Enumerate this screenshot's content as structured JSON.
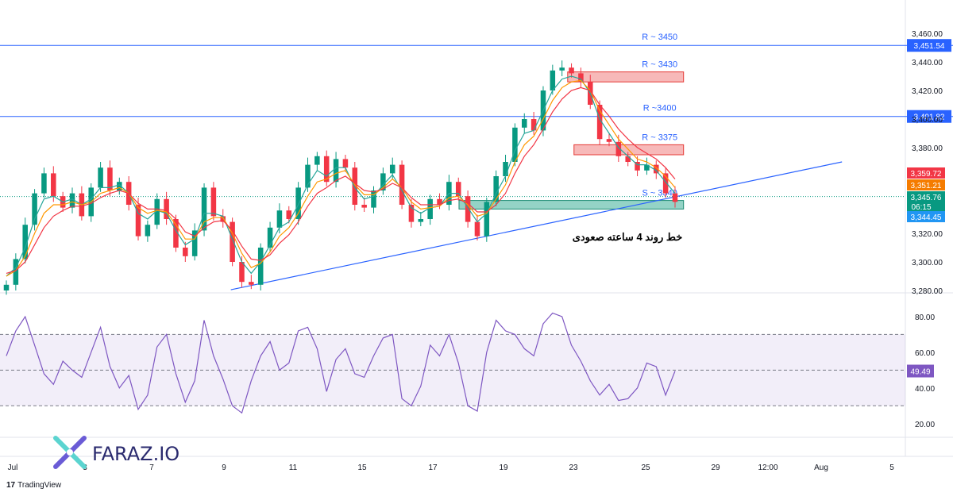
{
  "watermark": {
    "brand": "FARAZ.IO"
  },
  "footer": {
    "platform": "TradingView",
    "platform_mark": "17"
  },
  "chart_data": [
    {
      "type": "line",
      "subtype": "candlestick-price",
      "title": "",
      "xlabel": "",
      "ylabel": "",
      "ylim": [
        3280,
        3460
      ],
      "grid": false,
      "x_ticks": [
        "Jul",
        "3",
        "7",
        "9",
        "11",
        "15",
        "17",
        "19",
        "23",
        "25",
        "29",
        "12:00",
        "Aug",
        "5"
      ],
      "y_ticks": [
        "3,460.00",
        "3,440.00",
        "3,420.00",
        "3,400.00",
        "3,380.00",
        "3,340.00",
        "3,320.00",
        "3,300.00",
        "3,280.00"
      ],
      "series": [
        {
          "values": [
            3284,
            3302,
            3326,
            3348,
            3362,
            3346,
            3338,
            3348,
            3332,
            3352,
            3366,
            3350,
            3356,
            3340,
            3318,
            3326,
            3344,
            3330,
            3310,
            3304,
            3322,
            3352,
            3332,
            3328,
            3300,
            3286,
            3284,
            3310,
            3324,
            3336,
            3330,
            3352,
            3368,
            3374,
            3356,
            3372,
            3366,
            3340,
            3338,
            3350,
            3362,
            3368,
            3340,
            3328,
            3330,
            3344,
            3340,
            3356,
            3346,
            3328,
            3318,
            3342,
            3360,
            3370,
            3394,
            3400,
            3392,
            3420,
            3434,
            3436,
            3432,
            3426,
            3410,
            3386,
            3384,
            3374,
            3370,
            3364,
            3368,
            3362,
            3348,
            3342
          ]
        },
        {
          "name": "ema-fast",
          "values": [
            3290,
            3296,
            3310,
            3330,
            3344,
            3346,
            3342,
            3344,
            3340,
            3344,
            3352,
            3352,
            3354,
            3348,
            3334,
            3330,
            3336,
            3334,
            3322,
            3312,
            3316,
            3334,
            3334,
            3332,
            3316,
            3300,
            3292,
            3300,
            3312,
            3324,
            3328,
            3340,
            3354,
            3364,
            3360,
            3366,
            3366,
            3352,
            3344,
            3346,
            3354,
            3361,
            3350,
            3338,
            3334,
            3338,
            3339,
            3348,
            3348,
            3338,
            3328,
            3334,
            3348,
            3360,
            3378,
            3390,
            3392,
            3406,
            3420,
            3428,
            3430,
            3428,
            3418,
            3400,
            3390,
            3380,
            3374,
            3368,
            3368,
            3364,
            3356,
            3348
          ]
        },
        {
          "name": "ema-mid",
          "values": [
            3290,
            3294,
            3304,
            3320,
            3334,
            3340,
            3340,
            3342,
            3340,
            3342,
            3348,
            3350,
            3352,
            3348,
            3338,
            3334,
            3336,
            3335,
            3326,
            3316,
            3316,
            3328,
            3331,
            3331,
            3320,
            3306,
            3296,
            3299,
            3307,
            3318,
            3324,
            3334,
            3346,
            3356,
            3358,
            3362,
            3364,
            3354,
            3347,
            3347,
            3352,
            3358,
            3352,
            3342,
            3337,
            3338,
            3339,
            3345,
            3346,
            3340,
            3332,
            3334,
            3344,
            3354,
            3370,
            3382,
            3388,
            3400,
            3413,
            3422,
            3426,
            3427,
            3420,
            3406,
            3396,
            3386,
            3379,
            3372,
            3370,
            3366,
            3360,
            3352
          ]
        },
        {
          "name": "ema-slow",
          "values": [
            3292,
            3294,
            3300,
            3312,
            3324,
            3332,
            3336,
            3339,
            3339,
            3341,
            3345,
            3348,
            3350,
            3348,
            3341,
            3337,
            3337,
            3336,
            3330,
            3321,
            3318,
            3324,
            3328,
            3329,
            3322,
            3311,
            3302,
            3301,
            3305,
            3313,
            3319,
            3328,
            3339,
            3348,
            3352,
            3357,
            3360,
            3355,
            3350,
            3349,
            3351,
            3355,
            3352,
            3345,
            3340,
            3340,
            3340,
            3343,
            3344,
            3341,
            3335,
            3335,
            3340,
            3348,
            3362,
            3374,
            3382,
            3393,
            3405,
            3414,
            3420,
            3422,
            3420,
            3410,
            3402,
            3393,
            3386,
            3380,
            3376,
            3372,
            3366,
            3358
          ]
        }
      ],
      "hlines": [
        {
          "value": 3451.54,
          "tag": "3,451.54",
          "label": "R ~ 3450",
          "color": "#2962ff"
        },
        {
          "value": 3401.82,
          "tag": "3,401.82",
          "label": "R ~3400",
          "color": "#2962ff"
        }
      ],
      "zones": [
        {
          "label": "R ~ 3430",
          "x_from": 0.627,
          "x_to": 0.755,
          "y_from": 3426,
          "y_to": 3433,
          "color": "#f28b8b"
        },
        {
          "label": "R ~ 3375",
          "x_from": 0.634,
          "x_to": 0.755,
          "y_from": 3375,
          "y_to": 3382,
          "color": "#f28b8b"
        },
        {
          "label": "S ~ 3340",
          "x_from": 0.507,
          "x_to": 0.755,
          "y_from": 3337,
          "y_to": 3343,
          "color": "#4db6a0"
        }
      ],
      "trendline": {
        "label": "خط روند 4 ساعته صعودی",
        "from": [
          0.255,
          3280.5
        ],
        "to": [
          0.93,
          3370
        ]
      },
      "price_tags": [
        {
          "text": "3,359.72",
          "value": 3359.72,
          "color": "#f23645"
        },
        {
          "text": "3,351.21",
          "value": 3351.21,
          "color": "#f57c00"
        },
        {
          "text": "3,345.76",
          "sub": "06:15",
          "value": 3345.76,
          "color": "#089981"
        },
        {
          "text": "3,344.45",
          "value": 3344.45,
          "color": "#2196f3"
        }
      ],
      "colors": {
        "fast": "#26a69a",
        "mid": "#ff9800",
        "slow": "#f23645",
        "up": "#089981",
        "down": "#f23645"
      }
    },
    {
      "type": "line",
      "subtype": "rsi",
      "title": "",
      "ylim": [
        15,
        92
      ],
      "y_ticks": [
        "80.00",
        "60.00",
        "40.00",
        "20.00"
      ],
      "band": [
        30,
        70
      ],
      "midline": 50,
      "last_value_tag": "49.49",
      "color": "#7e57c2",
      "series": [
        {
          "values": [
            58,
            72,
            80,
            64,
            48,
            42,
            55,
            50,
            46,
            60,
            74,
            52,
            40,
            47,
            28,
            36,
            63,
            70,
            48,
            32,
            44,
            78,
            58,
            45,
            30,
            26,
            44,
            58,
            66,
            50,
            54,
            72,
            74,
            62,
            38,
            56,
            62,
            48,
            46,
            58,
            68,
            70,
            34,
            30,
            41,
            64,
            58,
            70,
            54,
            30,
            27,
            60,
            78,
            72,
            70,
            62,
            58,
            76,
            82,
            80,
            64,
            55,
            44,
            36,
            42,
            33,
            34,
            40,
            54,
            52,
            36,
            49.49
          ]
        }
      ]
    }
  ]
}
